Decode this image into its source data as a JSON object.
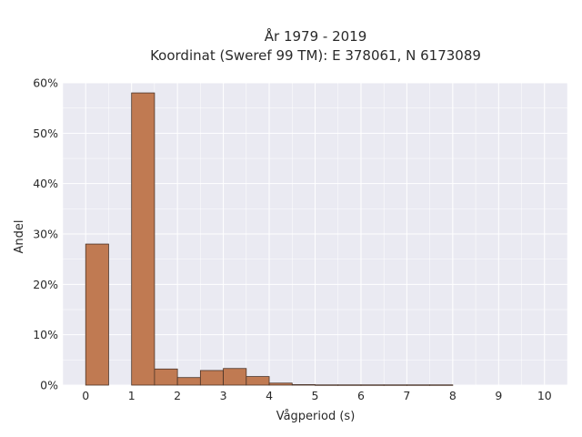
{
  "chart_data": {
    "type": "bar",
    "title_line1": "År 1979 - 2019",
    "title_line2": "Koordinat (Sweref 99 TM): E 378061, N 6173089",
    "xlabel": "Vågperiod (s)",
    "ylabel": "Andel",
    "xlim": [
      -0.5,
      10.5
    ],
    "ylim": [
      0,
      0.6
    ],
    "xticks": [
      0,
      1,
      2,
      3,
      4,
      5,
      6,
      7,
      8,
      9,
      10
    ],
    "xtick_labels": [
      "0",
      "1",
      "2",
      "3",
      "4",
      "5",
      "6",
      "7",
      "8",
      "9",
      "10"
    ],
    "yticks": [
      0,
      0.1,
      0.2,
      0.3,
      0.4,
      0.5,
      0.6
    ],
    "ytick_labels": [
      "0%",
      "10%",
      "20%",
      "30%",
      "40%",
      "50%",
      "60%"
    ],
    "grid": true,
    "bin_width": 0.5,
    "bins": [
      {
        "x": 0.0,
        "value": 0.28
      },
      {
        "x": 0.5,
        "value": 0.0
      },
      {
        "x": 1.0,
        "value": 0.58
      },
      {
        "x": 1.5,
        "value": 0.032
      },
      {
        "x": 2.0,
        "value": 0.015
      },
      {
        "x": 2.5,
        "value": 0.029
      },
      {
        "x": 3.0,
        "value": 0.033
      },
      {
        "x": 3.5,
        "value": 0.017
      },
      {
        "x": 4.0,
        "value": 0.004
      },
      {
        "x": 4.5,
        "value": 0.001
      },
      {
        "x": 5.0,
        "value": 0.0005
      },
      {
        "x": 5.5,
        "value": 0.0005
      },
      {
        "x": 6.0,
        "value": 0.0005
      },
      {
        "x": 6.5,
        "value": 0.0005
      },
      {
        "x": 7.0,
        "value": 0.0005
      },
      {
        "x": 7.5,
        "value": 0.0005
      }
    ],
    "colors": {
      "bar_fill": "#c07a52",
      "bar_edge": "#4a3327",
      "plot_bg": "#eaeaf2",
      "grid": "#ffffff"
    }
  }
}
